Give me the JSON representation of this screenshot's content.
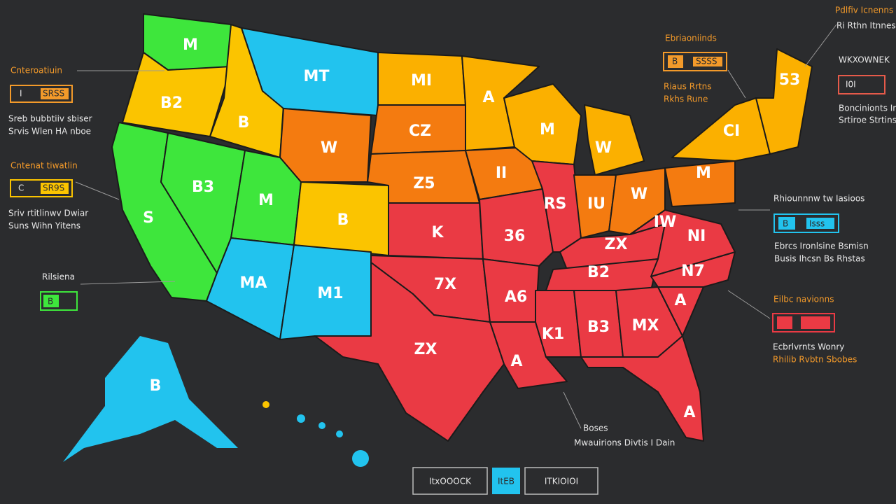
{
  "map": {
    "states": [
      "M",
      "B2",
      "S",
      "B3",
      "B",
      "MT",
      "W",
      "M",
      "B",
      "MA",
      "M1",
      "MI",
      "CZ",
      "Z5",
      "K",
      "7X",
      "ZX",
      "A",
      "II",
      "36",
      "A6",
      "A",
      "M",
      "RS",
      "W",
      "IU",
      "W",
      "ZX",
      "B2",
      "K1",
      "B3",
      "MX",
      "A",
      "N7",
      "NI",
      "IW",
      "M",
      "CI",
      "53",
      "B",
      "A"
    ]
  },
  "callouts": [
    {
      "title": "Cnteroatiuin",
      "box_left": "I",
      "box_right": "SRSS",
      "lines": [
        "Sreb bubbtiiv sbiser",
        "Srvis Wlen HA nboe"
      ]
    },
    {
      "title": "Cntenat tiwatlin",
      "box_left": "C",
      "box_right": "SR9S",
      "lines": [
        "Sriv rtitlinwv Dwiar",
        "Suns Wihn Yitens"
      ]
    },
    {
      "title": "Rilsiena",
      "box_left": "B"
    },
    {
      "title": "Ebriaoniinds",
      "box_left": "B",
      "box_right": "SSSS",
      "lines": [
        "Riaus Rrtns",
        "Rkhs Rune"
      ]
    },
    {
      "title": "Pdlfiv Icnenns",
      "lines": [
        "Ri Rthn Itnnes"
      ]
    },
    {
      "title": "WKXOWNEK",
      "box_left": "I0I",
      "lines": [
        "Boncinionts Inan",
        "Srtiroe Strtins"
      ]
    },
    {
      "title": "Rhiounnnw tw Iasioos",
      "box_left": "B",
      "box_right": "Isss",
      "lines": [
        "Ebrcs Ironlsine Bsmisn",
        "Busis Ihcsn Bs Rhstas"
      ]
    },
    {
      "title": "Eilbc navionns",
      "lines": [
        "Ecbrlvrnts Wonry",
        "Rhilib Rvbtn Sbobes"
      ]
    },
    {
      "title": "Boses",
      "lines": [
        "Mwauirions Divtis I Dain"
      ]
    }
  ],
  "footer": {
    "left": "ItxOOOCK",
    "middle": "ItEB",
    "right": "ITKIOIOI"
  }
}
